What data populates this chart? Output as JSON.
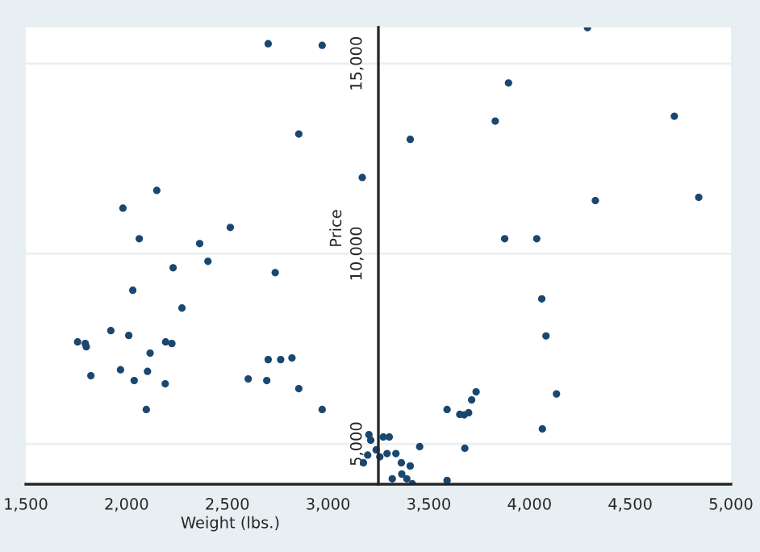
{
  "chart_data": {
    "type": "scatter",
    "xlabel": "Weight (lbs.)",
    "ylabel": "Price",
    "x": [
      2703,
      2971,
      2855,
      1982,
      2150,
      2063,
      2363,
      2515,
      2231,
      2404,
      2738,
      4288,
      3896,
      3830,
      3408,
      3170,
      4719,
      4327,
      4840,
      3877,
      4036,
      2031,
      2275,
      1922,
      2011,
      1757,
      1795,
      1800,
      2194,
      2225,
      2117,
      1823,
      1970,
      2104,
      2038,
      2192,
      2098,
      2604,
      2696,
      2703,
      2765,
      2821,
      2855,
      2971,
      4061,
      4082,
      4134,
      4064,
      3591,
      3735,
      3713,
      3698,
      3676,
      3654,
      3679,
      3455,
      3591,
      3203,
      3212,
      3274,
      3304,
      3239,
      3197,
      3176,
      3257,
      3293,
      3337,
      3364,
      3408,
      3319,
      3366,
      3391,
      3418
    ],
    "series": [
      {
        "color": "#1a476f",
        "values": [
          15521,
          15478,
          13148,
          11199,
          11665,
          10394,
          10267,
          10691,
          9631,
          9801,
          9504,
          15944,
          14491,
          13487,
          13008,
          12004,
          13614,
          11398,
          11483,
          10394,
          10394,
          9038,
          8572,
          7979,
          7852,
          7682,
          7640,
          7555,
          7682,
          7640,
          7386,
          6793,
          6949,
          6907,
          6665,
          6581,
          5903,
          6708,
          6665,
          7216,
          7216,
          7259,
          6453,
          5903,
          8814,
          7839,
          6314,
          5394,
          5903,
          6369,
          6157,
          5818,
          5763,
          5776,
          4886,
          4928,
          4038,
          5242,
          5098,
          5182,
          5182,
          4844,
          4704,
          4504,
          4661,
          4746,
          4746,
          4504,
          4420,
          4081,
          4208,
          4081,
          3954
        ]
      }
    ],
    "xlim": [
      1500,
      5000
    ],
    "xticks": [
      {
        "value": 1500,
        "label": "1,500"
      },
      {
        "value": 2000,
        "label": "2,000"
      },
      {
        "value": 2500,
        "label": "2,500"
      },
      {
        "value": 3000,
        "label": "3,000"
      },
      {
        "value": 3500,
        "label": "3,500"
      },
      {
        "value": 4000,
        "label": "4,000"
      },
      {
        "value": 4500,
        "label": "4,500"
      },
      {
        "value": 5000,
        "label": "5,000"
      }
    ],
    "ylim": [
      3940,
      15950
    ],
    "yticks": [
      {
        "value": 5000,
        "label": "5,000"
      },
      {
        "value": 10000,
        "label": "10,000"
      },
      {
        "value": 15000,
        "label": "15,000"
      }
    ],
    "grid": "y",
    "marker": "circle",
    "legend": false
  }
}
